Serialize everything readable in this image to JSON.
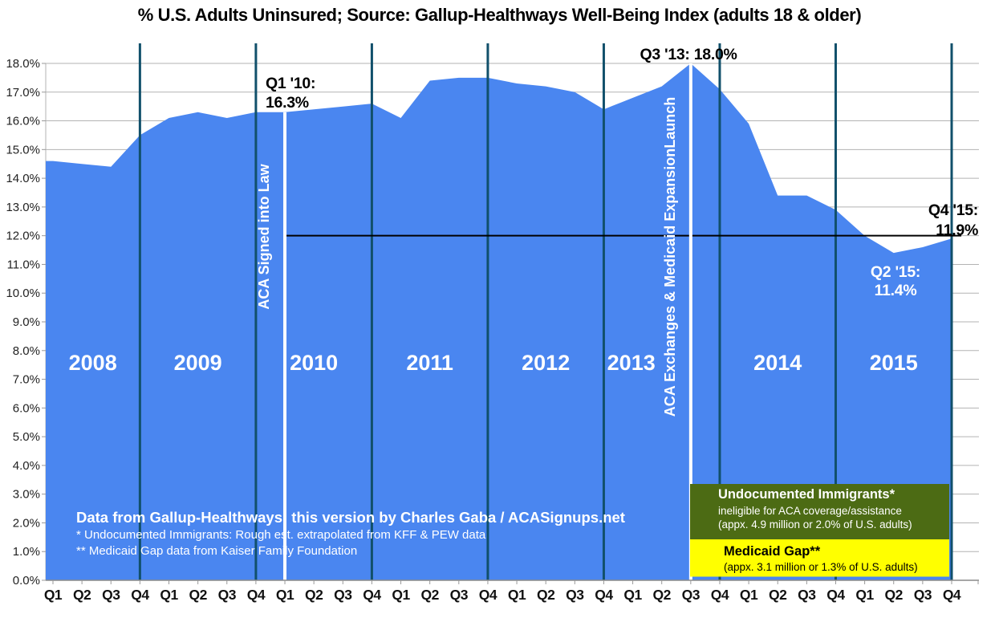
{
  "title": "% U.S. Adults Uninsured; Source: Gallup-Healthways Well-Being Index (adults 18 & older)",
  "chart_data": {
    "type": "area",
    "title": "% U.S. Adults Uninsured; Source: Gallup-Healthways Well-Being Index (adults 18 & older)",
    "categories": [
      "2008 Q1",
      "2008 Q2",
      "2008 Q3",
      "2008 Q4",
      "2009 Q1",
      "2009 Q2",
      "2009 Q3",
      "2009 Q4",
      "2010 Q1",
      "2010 Q2",
      "2010 Q3",
      "2010 Q4",
      "2011 Q1",
      "2011 Q2",
      "2011 Q3",
      "2011 Q4",
      "2012 Q1",
      "2012 Q2",
      "2012 Q3",
      "2012 Q4",
      "2013 Q1",
      "2013 Q2",
      "2013 Q3",
      "2013 Q4",
      "2014 Q1",
      "2014 Q2",
      "2014 Q3",
      "2014 Q4",
      "2015 Q1",
      "2015 Q2",
      "2015 Q3",
      "2015 Q4"
    ],
    "x_quarter_labels": [
      "Q1",
      "Q2",
      "Q3",
      "Q4",
      "Q1",
      "Q2",
      "Q3",
      "Q4",
      "Q1",
      "Q2",
      "Q3",
      "Q4",
      "Q1",
      "Q2",
      "Q3",
      "Q4",
      "Q1",
      "Q2",
      "Q3",
      "Q4",
      "Q1",
      "Q2",
      "Q3",
      "Q4",
      "Q1",
      "Q2",
      "Q3",
      "Q4",
      "Q1",
      "Q2",
      "Q3",
      "Q4"
    ],
    "year_labels": [
      "2008",
      "2009",
      "2010",
      "2011",
      "2012",
      "2013",
      "2014",
      "2015"
    ],
    "series": [
      {
        "name": "% of U.S. adults uninsured",
        "values": [
          14.6,
          14.5,
          14.4,
          15.5,
          16.1,
          16.3,
          16.1,
          16.3,
          16.3,
          16.4,
          16.5,
          16.6,
          16.1,
          17.4,
          17.5,
          17.5,
          17.3,
          17.2,
          17.0,
          16.4,
          16.8,
          17.2,
          18.0,
          17.1,
          15.9,
          13.4,
          13.4,
          12.9,
          12.0,
          11.4,
          11.6,
          11.9
        ]
      }
    ],
    "ylim": [
      0,
      18
    ],
    "y_tick_step": 1,
    "y_tick_labels": [
      "18.0%",
      "17.0%",
      "16.0%",
      "15.0%",
      "14.0%",
      "13.0%",
      "12.0%",
      "11.0%",
      "10.0%",
      "9.0%",
      "8.0%",
      "7.0%",
      "6.0%",
      "5.0%",
      "4.0%",
      "3.0%",
      "2.0%",
      "1.0%",
      "0.0%"
    ],
    "grid": true,
    "legend": false,
    "annotations": [
      {
        "id": "q1-10",
        "lines": [
          "Q1 '10:",
          "16.3%"
        ],
        "category": "2010 Q1",
        "quarter_index": 8,
        "value": 16.3
      },
      {
        "id": "q3-13",
        "lines": [
          "Q3 '13: 18.0%"
        ],
        "category": "2013 Q3",
        "quarter_index": 22,
        "value": 18.0
      },
      {
        "id": "q2-15",
        "lines": [
          "Q2 '15:",
          "11.4%"
        ],
        "category": "2015 Q2",
        "quarter_index": 29,
        "value": 11.4
      },
      {
        "id": "q4-15",
        "lines": [
          "Q4 '15:",
          "11.9%"
        ],
        "category": "2015 Q4",
        "quarter_index": 31,
        "value": 11.9
      }
    ],
    "event_lines": [
      {
        "id": "aca-signed",
        "label": "ACA Signed into Law",
        "category": "2010 Q1",
        "quarter_index": 8
      },
      {
        "id": "aca-exchanges",
        "label": "ACA Exchanges & Medicaid ExpansionLaunch",
        "category": "2013 Q3",
        "quarter_index": 22
      }
    ],
    "reference_line": {
      "value": 12.0,
      "from_category": "2010 Q1",
      "to_category": "2015 Q4"
    }
  },
  "footer_lines": [
    "Data from Gallup-Healthways; this version by Charles Gaba / ACASignups.net",
    "* Undocumented Immigrants: Rough est. extrapolated from KFF & PEW data",
    "** Medicaid Gap data from Kaiser Family Foundation"
  ],
  "callout_boxes": [
    {
      "id": "undocumented-immigrants",
      "lines": [
        "Undocumented Immigrants*",
        "ineligible for ACA coverage/assistance",
        "(appx. 4.9 million or 2.0% of U.S. adults)"
      ],
      "fill": "#4c6b14",
      "text_color": "#ffffff"
    },
    {
      "id": "medicaid-gap",
      "lines": [
        "Medicaid Gap**",
        "(appx. 3.1 million or 1.3% of U.S. adults)"
      ],
      "fill": "#ffff00",
      "text_color": "#000000"
    }
  ],
  "colors": {
    "area": "#4a86f0",
    "year_line": "#11506b",
    "event_line": "#ffffff",
    "reference_line": "#000000",
    "grid": "#b3b3b3",
    "axis": "#8a8a8a",
    "tick": "#999999",
    "axis_label": "#222222",
    "annotation_dark": "#000000",
    "annotation_light": "#ffffff",
    "year_label": "#ffffff",
    "title": "#000000"
  }
}
